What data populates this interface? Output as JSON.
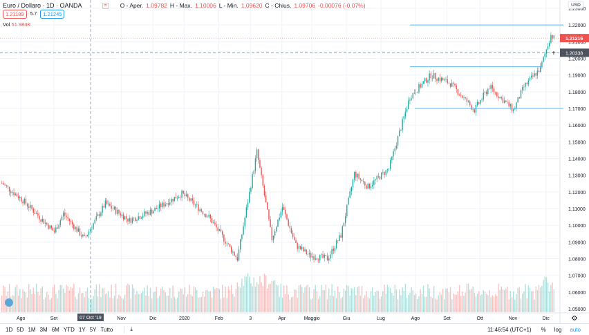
{
  "header": {
    "title": "Euro / Dollaro · 1D · OANDA",
    "o_label": "O - Aper.",
    "o": "1.09782",
    "h_label": "H - Max.",
    "h": "1.10006",
    "l_label": "L - Min.",
    "l": "1.09620",
    "c_label": "C - Chius.",
    "c": "1.09706",
    "change": "-0.00076 (-0.07%)",
    "bid": "1.21189",
    "spread": "5.7",
    "ask": "1.21245",
    "vol_label": "Vol",
    "vol": "51.983K"
  },
  "axis": {
    "currency": "USD",
    "last_price": "1.21216",
    "crosshair_price": "1.20338",
    "crosshair_date": "07 Oct '19"
  },
  "toolbar": {
    "ranges": [
      "1D",
      "5D",
      "1M",
      "3M",
      "6M",
      "YTD",
      "1Y",
      "5Y",
      "Tutto"
    ],
    "time": "11:46:54 (UTC+1)",
    "percent": "%",
    "log": "log",
    "auto": "auto"
  },
  "colors": {
    "up": "#26a69a",
    "down": "#ef5350",
    "line": "#5bb5f0"
  },
  "chart_data": {
    "type": "candlestick",
    "title": "Euro / Dollaro · 1D · OANDA",
    "ylim": [
      1.045,
      1.235
    ],
    "y_ticks": [
      "1.23000",
      "1.22000",
      "1.21000",
      "1.20000",
      "1.19000",
      "1.18000",
      "1.17000",
      "1.16000",
      "1.15000",
      "1.14000",
      "1.13000",
      "1.12000",
      "1.11000",
      "1.10000",
      "1.09000",
      "1.08000",
      "1.07000",
      "1.06000",
      "1.05000"
    ],
    "x_ticks": [
      [
        "Ago",
        13
      ],
      [
        "Set",
        35
      ],
      [
        "Nov",
        80
      ],
      [
        "Dic",
        101
      ],
      [
        "2020",
        122
      ],
      [
        "Feb",
        145
      ],
      [
        "3",
        166
      ],
      [
        "Apr",
        187
      ],
      [
        "Maggio",
        207
      ],
      [
        "Giu",
        230
      ],
      [
        "Lug",
        253
      ],
      [
        "Ago",
        276
      ],
      [
        "Set",
        297
      ],
      [
        "Ott",
        319
      ],
      [
        "Nov",
        341
      ],
      [
        "Dic",
        363
      ]
    ],
    "total_days": 372,
    "anchors": [
      [
        0,
        1.1253
      ],
      [
        14,
        1.115
      ],
      [
        35,
        1.096
      ],
      [
        41,
        1.107
      ],
      [
        55,
        1.092
      ],
      [
        69,
        1.113
      ],
      [
        85,
        1.103
      ],
      [
        101,
        1.109
      ],
      [
        120,
        1.119
      ],
      [
        138,
        1.105
      ],
      [
        157,
        1.08
      ],
      [
        170,
        1.144
      ],
      [
        180,
        1.092
      ],
      [
        187,
        1.111
      ],
      [
        196,
        1.088
      ],
      [
        205,
        1.082
      ],
      [
        217,
        1.08
      ],
      [
        226,
        1.094
      ],
      [
        235,
        1.131
      ],
      [
        244,
        1.123
      ],
      [
        258,
        1.134
      ],
      [
        272,
        1.177
      ],
      [
        286,
        1.19
      ],
      [
        299,
        1.185
      ],
      [
        315,
        1.169
      ],
      [
        325,
        1.183
      ],
      [
        341,
        1.169
      ],
      [
        348,
        1.183
      ],
      [
        359,
        1.194
      ],
      [
        366,
        1.214
      ],
      [
        368,
        1.2122
      ]
    ],
    "hlines": [
      1.22,
      1.195,
      1.17
    ]
  }
}
